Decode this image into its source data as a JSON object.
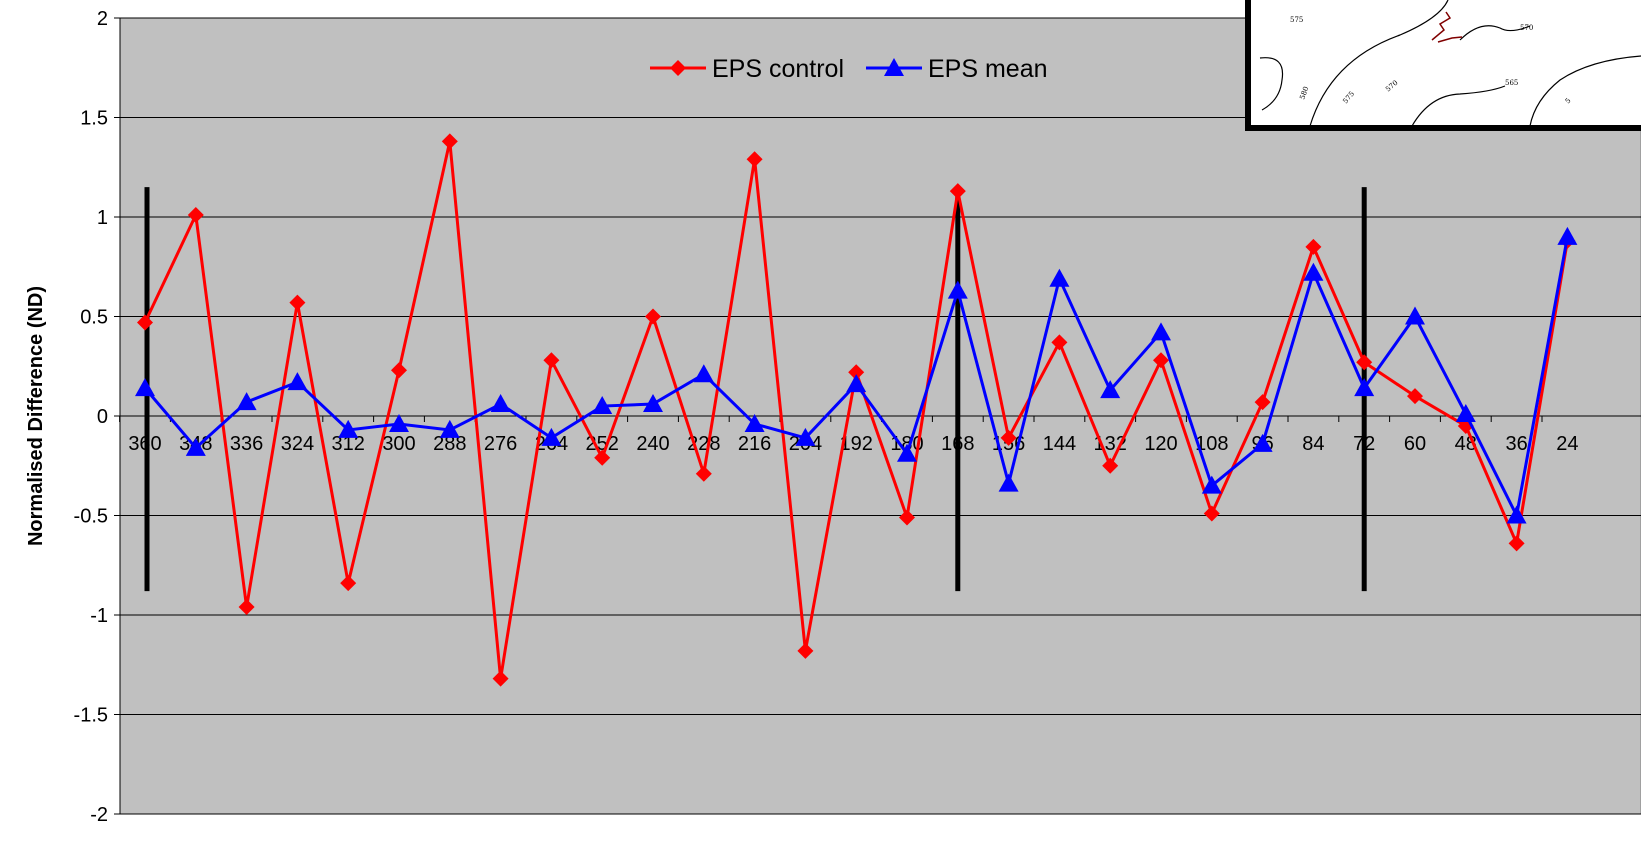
{
  "chart_data": {
    "type": "line",
    "title": "",
    "xlabel": "",
    "ylabel": "Normalised Difference (ND)",
    "ylim": [
      -2,
      2
    ],
    "yticks": [
      "2",
      "1.5",
      "1",
      "0.5",
      "0",
      "-0.5",
      "-1",
      "-1.5",
      "-2"
    ],
    "categories": [
      "360",
      "348",
      "336",
      "324",
      "312",
      "300",
      "288",
      "276",
      "264",
      "252",
      "240",
      "228",
      "216",
      "204",
      "192",
      "180",
      "168",
      "156",
      "144",
      "132",
      "120",
      "108",
      "96",
      "84",
      "72",
      "60",
      "48",
      "36",
      "24"
    ],
    "series": [
      {
        "name": "EPS control",
        "color": "#ff0000",
        "marker": "diamond",
        "values": [
          0.47,
          1.01,
          -0.96,
          0.57,
          -0.84,
          0.23,
          1.38,
          -1.32,
          0.28,
          -0.21,
          0.5,
          -0.29,
          1.29,
          -1.18,
          0.22,
          -0.51,
          1.13,
          -0.11,
          0.37,
          -0.25,
          0.28,
          -0.49,
          0.07,
          0.85,
          0.27,
          0.1,
          -0.05,
          -0.64,
          0.88
        ]
      },
      {
        "name": "EPS mean",
        "color": "#0000ff",
        "marker": "triangle",
        "values": [
          0.14,
          -0.16,
          0.07,
          0.17,
          -0.07,
          -0.04,
          -0.07,
          0.06,
          -0.11,
          0.05,
          0.06,
          0.21,
          -0.04,
          -0.11,
          0.16,
          -0.19,
          0.63,
          -0.34,
          0.69,
          0.13,
          0.42,
          -0.35,
          -0.14,
          0.72,
          0.14,
          0.5,
          0.01,
          -0.5,
          0.9
        ]
      }
    ],
    "vertical_markers": [
      "360",
      "168",
      "72"
    ],
    "grid": true,
    "legend_position": "top-center",
    "plot_background": "#c0c0c0",
    "inset_contour_labels": [
      "575",
      "570",
      "565",
      "580",
      "575",
      "570",
      "5"
    ]
  }
}
